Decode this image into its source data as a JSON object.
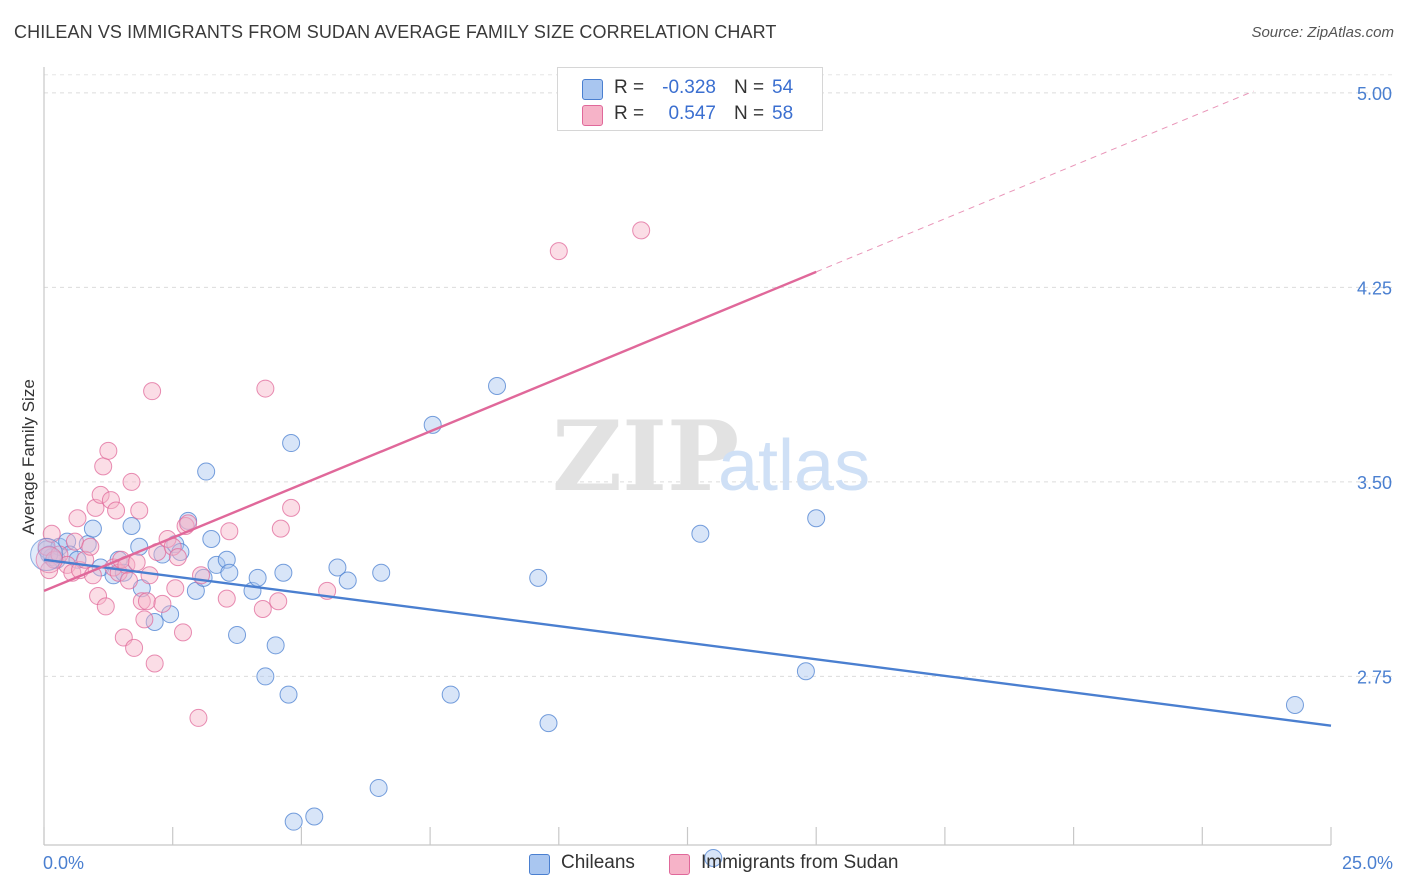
{
  "title": "CHILEAN VS IMMIGRANTS FROM SUDAN AVERAGE FAMILY SIZE CORRELATION CHART",
  "source": "Source: ZipAtlas.com",
  "watermark": {
    "zip": "ZIP",
    "atlas": "atlas"
  },
  "legend": {
    "rows": [
      {
        "r_label": "R =",
        "r_value": "-0.328",
        "n_label": "N =",
        "n_value": "54",
        "color": "#a9c6f0"
      },
      {
        "r_label": "R =",
        "r_value": "0.547",
        "n_label": "N =",
        "n_value": "58",
        "color": "#f6b3c8"
      }
    ]
  },
  "bottom_legend": {
    "series1": "Chileans",
    "series2": "Immigrants from Sudan"
  },
  "chart_data": {
    "type": "scatter",
    "title": "CHILEAN VS IMMIGRANTS FROM SUDAN AVERAGE FAMILY SIZE CORRELATION CHART",
    "xlabel": "",
    "ylabel": "Average Family Size",
    "xlim": [
      0,
      25
    ],
    "ylim": [
      2.1,
      5.1
    ],
    "x_tick_labels": [
      "0.0%",
      "25.0%"
    ],
    "y_ticks": [
      2.75,
      3.5,
      4.25,
      5.0
    ],
    "y_tick_labels": [
      "2.75",
      "3.50",
      "4.25",
      "5.00"
    ],
    "grid": true,
    "legend_placement": "bottom",
    "series": [
      {
        "name": "Chileans",
        "color": "#4a7fd0",
        "fill": "#a9c6f0",
        "trend": {
          "x": [
            0,
            25
          ],
          "y": [
            3.2,
            2.56
          ],
          "dashed_x": null
        },
        "points": [
          [
            0.05,
            3.24
          ],
          [
            0.15,
            3.21
          ],
          [
            0.25,
            3.2
          ],
          [
            0.3,
            3.25
          ],
          [
            0.45,
            3.27
          ],
          [
            0.5,
            3.22
          ],
          [
            0.65,
            3.2
          ],
          [
            0.85,
            3.26
          ],
          [
            0.95,
            3.32
          ],
          [
            1.1,
            3.17
          ],
          [
            1.35,
            3.14
          ],
          [
            1.45,
            3.2
          ],
          [
            1.55,
            3.15
          ],
          [
            1.7,
            3.33
          ],
          [
            1.85,
            3.25
          ],
          [
            1.9,
            3.09
          ],
          [
            2.15,
            2.96
          ],
          [
            2.3,
            3.22
          ],
          [
            2.45,
            2.99
          ],
          [
            2.55,
            3.26
          ],
          [
            2.65,
            3.23
          ],
          [
            2.8,
            3.35
          ],
          [
            2.95,
            3.08
          ],
          [
            3.1,
            3.13
          ],
          [
            3.15,
            3.54
          ],
          [
            3.25,
            3.28
          ],
          [
            3.35,
            3.18
          ],
          [
            3.55,
            3.2
          ],
          [
            3.6,
            3.15
          ],
          [
            3.75,
            2.91
          ],
          [
            4.05,
            3.08
          ],
          [
            4.15,
            3.13
          ],
          [
            4.3,
            2.75
          ],
          [
            4.5,
            2.87
          ],
          [
            4.65,
            3.15
          ],
          [
            4.75,
            2.68
          ],
          [
            4.8,
            3.65
          ],
          [
            4.85,
            2.19
          ],
          [
            5.25,
            2.21
          ],
          [
            5.7,
            3.17
          ],
          [
            5.9,
            3.12
          ],
          [
            6.5,
            2.32
          ],
          [
            6.55,
            3.15
          ],
          [
            7.55,
            3.72
          ],
          [
            7.9,
            2.68
          ],
          [
            8.8,
            3.87
          ],
          [
            9.6,
            3.13
          ],
          [
            9.8,
            2.57
          ],
          [
            12.75,
            3.3
          ],
          [
            13.0,
            2.05
          ],
          [
            14.8,
            2.77
          ],
          [
            15.0,
            3.36
          ],
          [
            24.3,
            2.64
          ],
          [
            0.1,
            3.22
          ]
        ]
      },
      {
        "name": "Immigrants from Sudan",
        "color": "#e0689a",
        "fill": "#f6b3c8",
        "trend": {
          "x": [
            0,
            15.0
          ],
          "y": [
            3.08,
            4.31
          ],
          "dashed_x": [
            15.0,
            23.5
          ]
        },
        "points": [
          [
            0.05,
            3.25
          ],
          [
            0.1,
            3.16
          ],
          [
            0.2,
            3.2
          ],
          [
            0.3,
            3.22
          ],
          [
            0.45,
            3.18
          ],
          [
            0.55,
            3.15
          ],
          [
            0.6,
            3.27
          ],
          [
            0.65,
            3.36
          ],
          [
            0.7,
            3.16
          ],
          [
            0.8,
            3.2
          ],
          [
            0.9,
            3.25
          ],
          [
            0.95,
            3.14
          ],
          [
            1.0,
            3.4
          ],
          [
            1.05,
            3.06
          ],
          [
            1.1,
            3.45
          ],
          [
            1.15,
            3.56
          ],
          [
            1.2,
            3.02
          ],
          [
            1.25,
            3.62
          ],
          [
            1.3,
            3.43
          ],
          [
            1.35,
            3.17
          ],
          [
            1.4,
            3.39
          ],
          [
            1.45,
            3.15
          ],
          [
            1.5,
            3.2
          ],
          [
            1.55,
            2.9
          ],
          [
            1.6,
            3.18
          ],
          [
            1.65,
            3.12
          ],
          [
            1.7,
            3.5
          ],
          [
            1.75,
            2.86
          ],
          [
            1.8,
            3.19
          ],
          [
            1.85,
            3.39
          ],
          [
            1.9,
            3.04
          ],
          [
            1.95,
            2.97
          ],
          [
            2.0,
            3.04
          ],
          [
            2.05,
            3.14
          ],
          [
            2.1,
            3.85
          ],
          [
            2.15,
            2.8
          ],
          [
            2.2,
            3.23
          ],
          [
            2.3,
            3.03
          ],
          [
            2.4,
            3.28
          ],
          [
            2.5,
            3.25
          ],
          [
            2.55,
            3.09
          ],
          [
            2.6,
            3.21
          ],
          [
            2.7,
            2.92
          ],
          [
            2.75,
            3.33
          ],
          [
            2.8,
            3.34
          ],
          [
            3.0,
            2.59
          ],
          [
            3.05,
            3.14
          ],
          [
            3.55,
            3.05
          ],
          [
            3.6,
            3.31
          ],
          [
            4.25,
            3.01
          ],
          [
            4.3,
            3.86
          ],
          [
            4.55,
            3.04
          ],
          [
            4.6,
            3.32
          ],
          [
            4.8,
            3.4
          ],
          [
            5.5,
            3.08
          ],
          [
            10.0,
            4.39
          ],
          [
            11.6,
            4.47
          ],
          [
            0.15,
            3.3
          ]
        ]
      }
    ]
  }
}
